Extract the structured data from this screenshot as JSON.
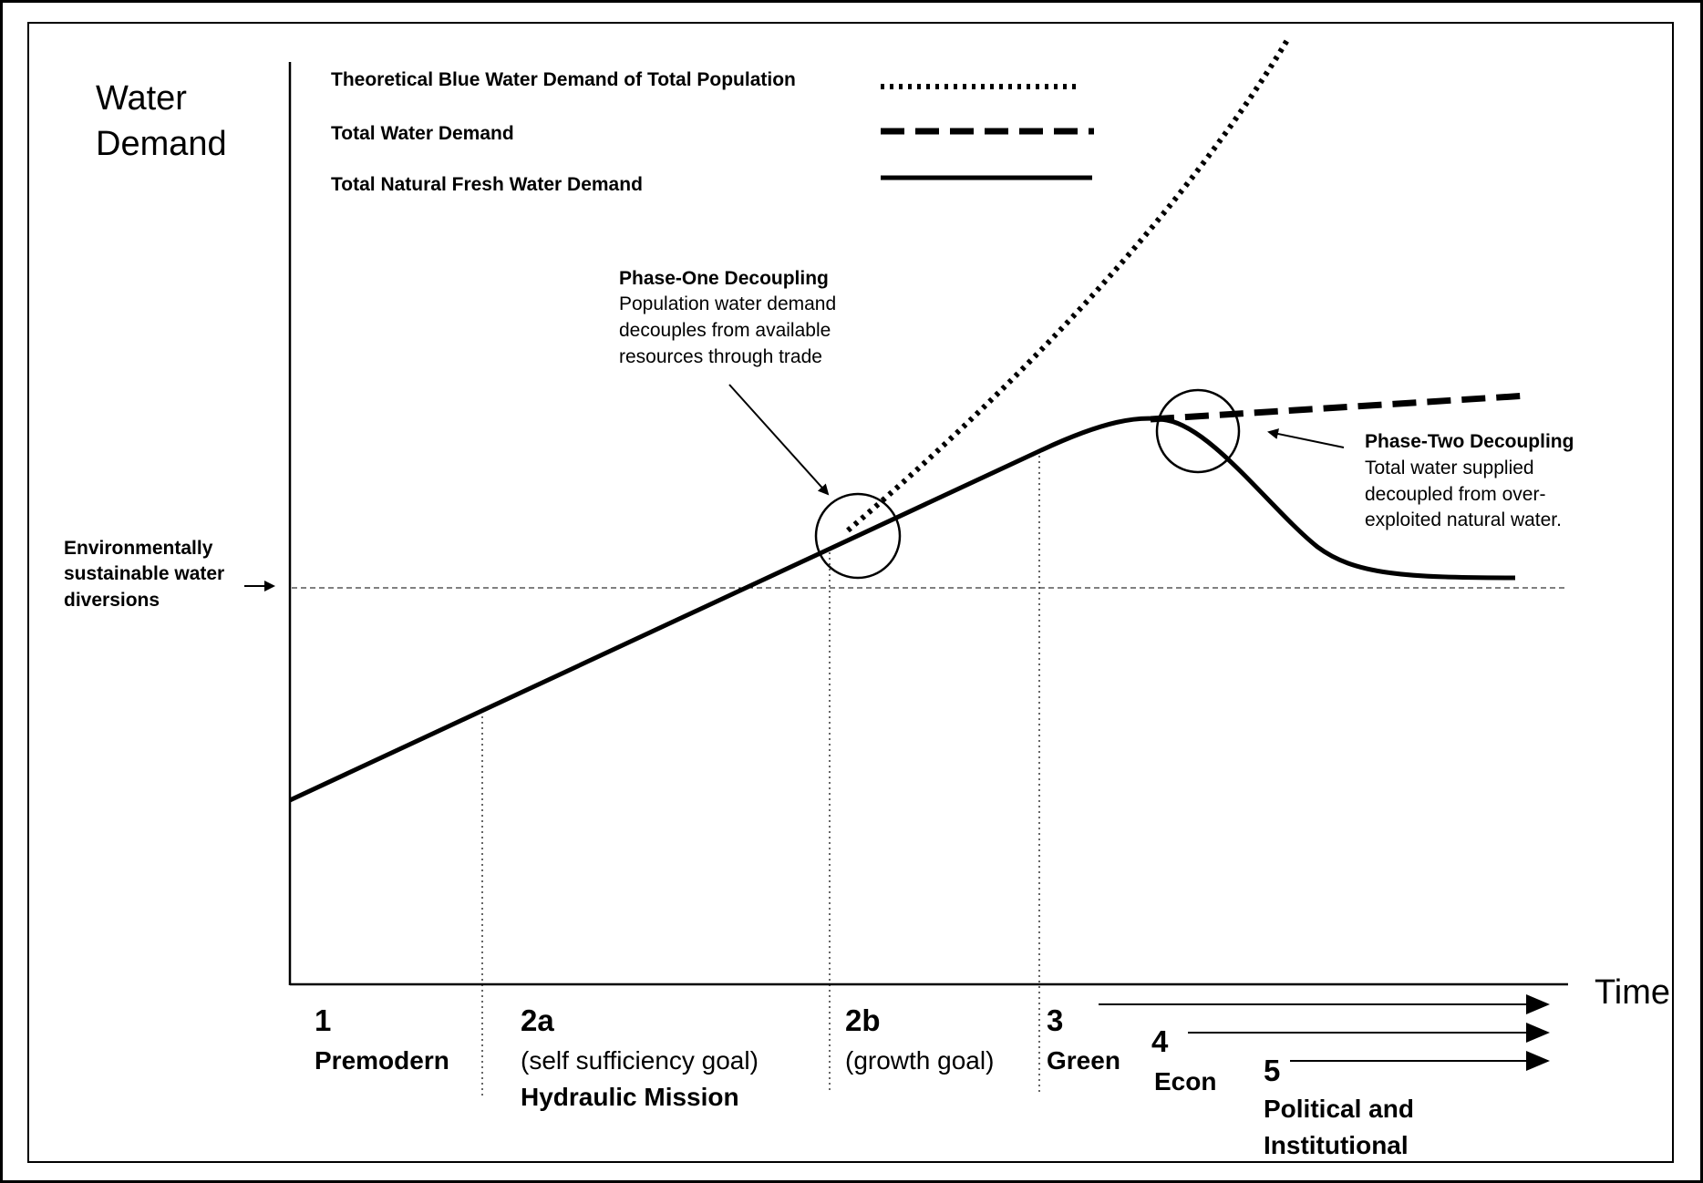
{
  "axis": {
    "y_label": [
      "Water",
      "Demand"
    ],
    "x_label": "Time"
  },
  "legend": [
    {
      "label": "Theoretical Blue Water Demand of Total Population",
      "style": "dotted"
    },
    {
      "label": "Total Water Demand",
      "style": "dashed"
    },
    {
      "label": "Total Natural Fresh Water Demand",
      "style": "solid"
    }
  ],
  "sustainable_label": [
    "Environmentally",
    "sustainable water",
    "diversions"
  ],
  "phase_one": {
    "title": "Phase-One Decoupling",
    "lines": [
      "Population water demand",
      "decouples from available",
      "resources through trade"
    ]
  },
  "phase_two": {
    "title": "Phase-Two Decoupling",
    "lines": [
      "Total water supplied",
      "decoupled from over-",
      "exploited natural water."
    ]
  },
  "phases": [
    {
      "number": "1",
      "lines": [
        "Premodern"
      ]
    },
    {
      "number": "2a",
      "lines": [
        "(self sufficiency goal)",
        "Hydraulic Mission"
      ]
    },
    {
      "number": "2b",
      "lines": [
        "(growth goal)"
      ]
    },
    {
      "number": "3",
      "lines": [
        "Green"
      ]
    },
    {
      "number": "4",
      "lines": [
        "Econ"
      ]
    },
    {
      "number": "5",
      "lines": [
        "Political and",
        "Institutional"
      ]
    }
  ],
  "colors": {
    "ink": "#000000",
    "background": "#ffffff"
  }
}
